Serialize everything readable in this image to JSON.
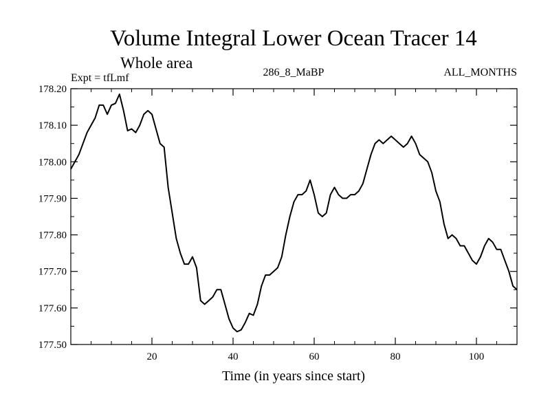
{
  "chart_data": {
    "type": "line",
    "title": "Volume Integral Lower Ocean Tracer 14",
    "subtitle": "Whole area",
    "expt_label": "Expt = tfLmf",
    "center_label": "286_8_MaBP",
    "right_label": "ALL_MONTHS",
    "xlabel": "Time (in years since start)",
    "ylabel": "",
    "xlim": [
      0,
      110
    ],
    "ylim": [
      177.5,
      178.2
    ],
    "xticks": [
      20,
      40,
      60,
      80,
      100
    ],
    "yticks": [
      "177.50",
      "177.60",
      "177.70",
      "177.80",
      "177.90",
      "178.00",
      "178.10",
      "178.20"
    ],
    "series": [
      {
        "name": "Lower Ocean Tracer 14",
        "color": "#000000",
        "x": [
          0,
          1,
          2,
          3,
          4,
          5,
          6,
          7,
          8,
          9,
          10,
          11,
          12,
          13,
          14,
          15,
          16,
          17,
          18,
          19,
          20,
          21,
          22,
          23,
          24,
          25,
          26,
          27,
          28,
          29,
          30,
          31,
          32,
          33,
          34,
          35,
          36,
          37,
          38,
          39,
          40,
          41,
          42,
          43,
          44,
          45,
          46,
          47,
          48,
          49,
          50,
          51,
          52,
          53,
          54,
          55,
          56,
          57,
          58,
          59,
          60,
          61,
          62,
          63,
          64,
          65,
          66,
          67,
          68,
          69,
          70,
          71,
          72,
          73,
          74,
          75,
          76,
          77,
          78,
          79,
          80,
          81,
          82,
          83,
          84,
          85,
          86,
          87,
          88,
          89,
          90,
          91,
          92,
          93,
          94,
          95,
          96,
          97,
          98,
          99,
          100,
          101,
          102,
          103,
          104,
          105,
          106,
          107,
          108,
          109,
          110
        ],
        "values": [
          177.98,
          178.0,
          178.02,
          178.05,
          178.08,
          178.1,
          178.12,
          178.155,
          178.155,
          178.13,
          178.155,
          178.16,
          178.185,
          178.14,
          178.085,
          178.09,
          178.08,
          178.1,
          178.13,
          178.14,
          178.13,
          178.09,
          178.05,
          178.04,
          177.93,
          177.86,
          177.79,
          177.75,
          177.72,
          177.72,
          177.74,
          177.71,
          177.62,
          177.61,
          177.62,
          177.63,
          177.65,
          177.65,
          177.61,
          177.57,
          177.545,
          177.535,
          177.54,
          177.56,
          177.585,
          177.58,
          177.61,
          177.66,
          177.69,
          177.69,
          177.7,
          177.71,
          177.74,
          177.8,
          177.85,
          177.89,
          177.91,
          177.91,
          177.92,
          177.95,
          177.91,
          177.86,
          177.85,
          177.86,
          177.91,
          177.93,
          177.91,
          177.9,
          177.9,
          177.91,
          177.91,
          177.92,
          177.94,
          177.98,
          178.02,
          178.05,
          178.06,
          178.05,
          178.06,
          178.07,
          178.06,
          178.05,
          178.04,
          178.05,
          178.07,
          178.05,
          178.02,
          178.01,
          178.0,
          177.97,
          177.92,
          177.89,
          177.83,
          177.79,
          177.8,
          177.79,
          177.77,
          177.77,
          177.75,
          177.73,
          177.72,
          177.74,
          177.77,
          177.79,
          177.78,
          177.76,
          177.76,
          177.73,
          177.7,
          177.66,
          177.65
        ]
      }
    ]
  }
}
